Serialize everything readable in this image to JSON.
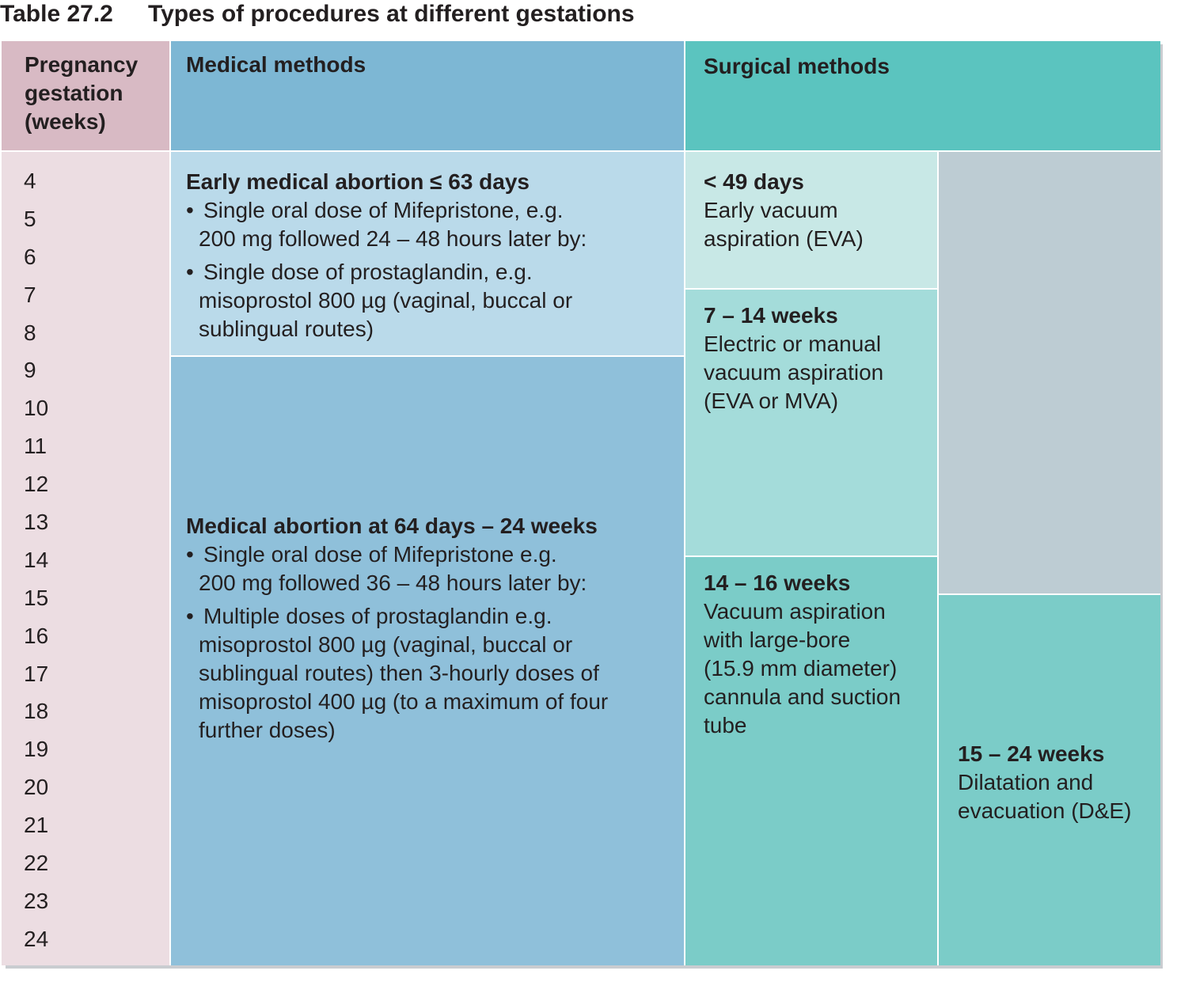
{
  "title": {
    "number": "Table 27.2",
    "text": "Types of procedures at different gestations"
  },
  "headers": {
    "gestation": [
      "Pregnancy",
      "gestation",
      "(weeks)"
    ],
    "medical": "Medical methods",
    "surgical": "Surgical methods"
  },
  "weeks": [
    "4",
    "5",
    "6",
    "7",
    "8",
    "9",
    "10",
    "11",
    "12",
    "13",
    "14",
    "15",
    "16",
    "17",
    "18",
    "19",
    "20",
    "21",
    "22",
    "23",
    "24"
  ],
  "medical": {
    "early": {
      "heading": "Early medical abortion ≤ 63 days",
      "bullets": [
        [
          "Single oral dose of Mifepristone, e.g.",
          "200 mg followed 24 – 48 hours later by:"
        ],
        [
          "Single dose of prostaglandin, e.g.",
          "misoprostol 800 µg (vaginal, buccal or",
          "sublingual routes)"
        ]
      ]
    },
    "late": {
      "heading": "Medical abortion at 64 days – 24 weeks",
      "bullets": [
        [
          "Single oral dose of Mifepristone e.g.",
          "200 mg followed 36 – 48 hours later by:"
        ],
        [
          "Multiple doses of prostaglandin e.g.",
          "misoprostol 800 µg (vaginal, buccal or",
          "sublingual routes) then 3-hourly doses of",
          "misoprostol 400 µg (to a maximum of four",
          "further doses)"
        ]
      ]
    }
  },
  "surgical": {
    "eva": {
      "heading": "< 49 days",
      "lines": [
        "Early vacuum",
        "aspiration (EVA)"
      ]
    },
    "mva": {
      "heading": "7 – 14 weeks",
      "lines": [
        "Electric or manual",
        "vacuum aspiration",
        "(EVA or MVA)"
      ]
    },
    "large_bore": {
      "heading": "14 – 16 weeks",
      "lines": [
        "Vacuum aspiration",
        "with large-bore",
        "(15.9 mm diameter)",
        "cannula and suction",
        "tube"
      ]
    },
    "de": {
      "heading": "15 – 24 weeks",
      "lines": [
        "Dilatation and",
        "evacuation (D&E)"
      ]
    }
  },
  "colors": {
    "gestation_header": "#d8bac4",
    "gestation_body": "#ecdde2",
    "medical_header": "#7db7d4",
    "medical_early": "#badaea",
    "medical_late": "#8fc0da",
    "surgical_header": "#5bc4bf",
    "surgical_eva": "#c8e8e6",
    "surgical_mva": "#a4dcda",
    "surgical_large_bore": "#7bccc8",
    "surgical_de": "#7bccc8",
    "grey_block": "#bdccd3",
    "grid_line": "#ffffff"
  }
}
